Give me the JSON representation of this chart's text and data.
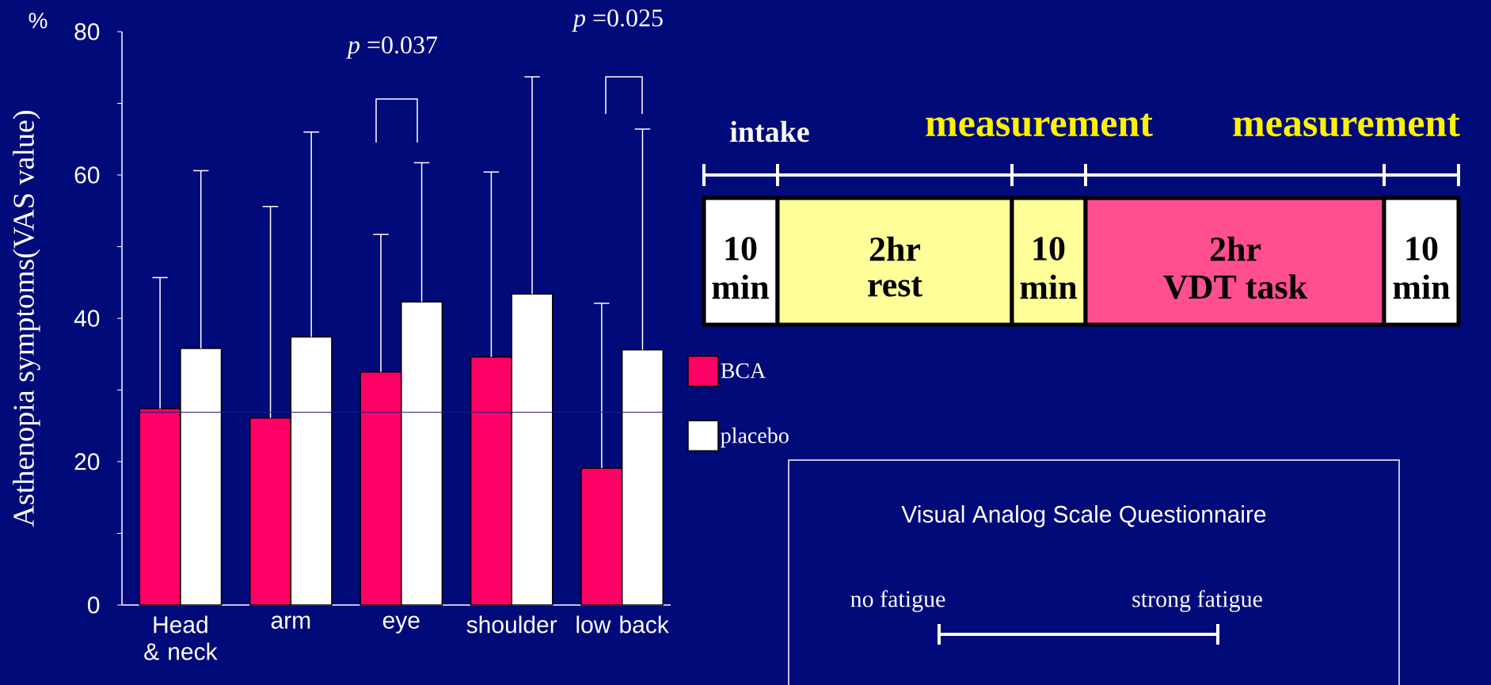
{
  "chart_data": {
    "type": "bar",
    "categories": [
      "Head & neck",
      "arm",
      "eye",
      "shoulder",
      "low back"
    ],
    "series": [
      {
        "name": "BCA",
        "color": "#ff0066",
        "values": [
          27.4,
          26.1,
          32.5,
          34.6,
          19.1
        ],
        "errors": [
          [
            27.4,
            45.7
          ],
          [
            26.1,
            55.6
          ],
          [
            32.5,
            51.7
          ],
          [
            34.6,
            60.4
          ],
          [
            19.1,
            42.1
          ]
        ]
      },
      {
        "name": "placebo",
        "color": "#ffffff",
        "values": [
          35.8,
          37.4,
          42.3,
          43.4,
          35.6
        ],
        "errors": [
          [
            35.8,
            60.6
          ],
          [
            37.4,
            66.0
          ],
          [
            42.3,
            61.7
          ],
          [
            43.4,
            73.7
          ],
          [
            35.6,
            66.4
          ]
        ]
      }
    ],
    "ylabel": "Asthenopia symptoms(VAS value)",
    "ylim": [
      0,
      80
    ],
    "yticks": [
      0,
      {
        "value": 10,
        "label": null
      },
      20,
      {
        "value": 30,
        "label": null
      },
      40,
      {
        "value": 50,
        "label": null
      },
      60,
      {
        "value": 70,
        "label": null
      },
      80
    ],
    "legend": "right",
    "ref_lines": [
      {
        "axis": "y",
        "value": 26.9,
        "color": "#1a1a80"
      }
    ],
    "annotations": [
      "%",
      "*p* =0.037",
      "*p* =0.025",
      "intake",
      "measurement",
      "measurement",
      "10",
      "min",
      "2hr",
      "rest",
      "10",
      "min",
      "2hr",
      "VDT task",
      "10",
      "min",
      "Visual Analog Scale Questionnaire",
      "no fatigue",
      "strong fatigue"
    ]
  }
}
